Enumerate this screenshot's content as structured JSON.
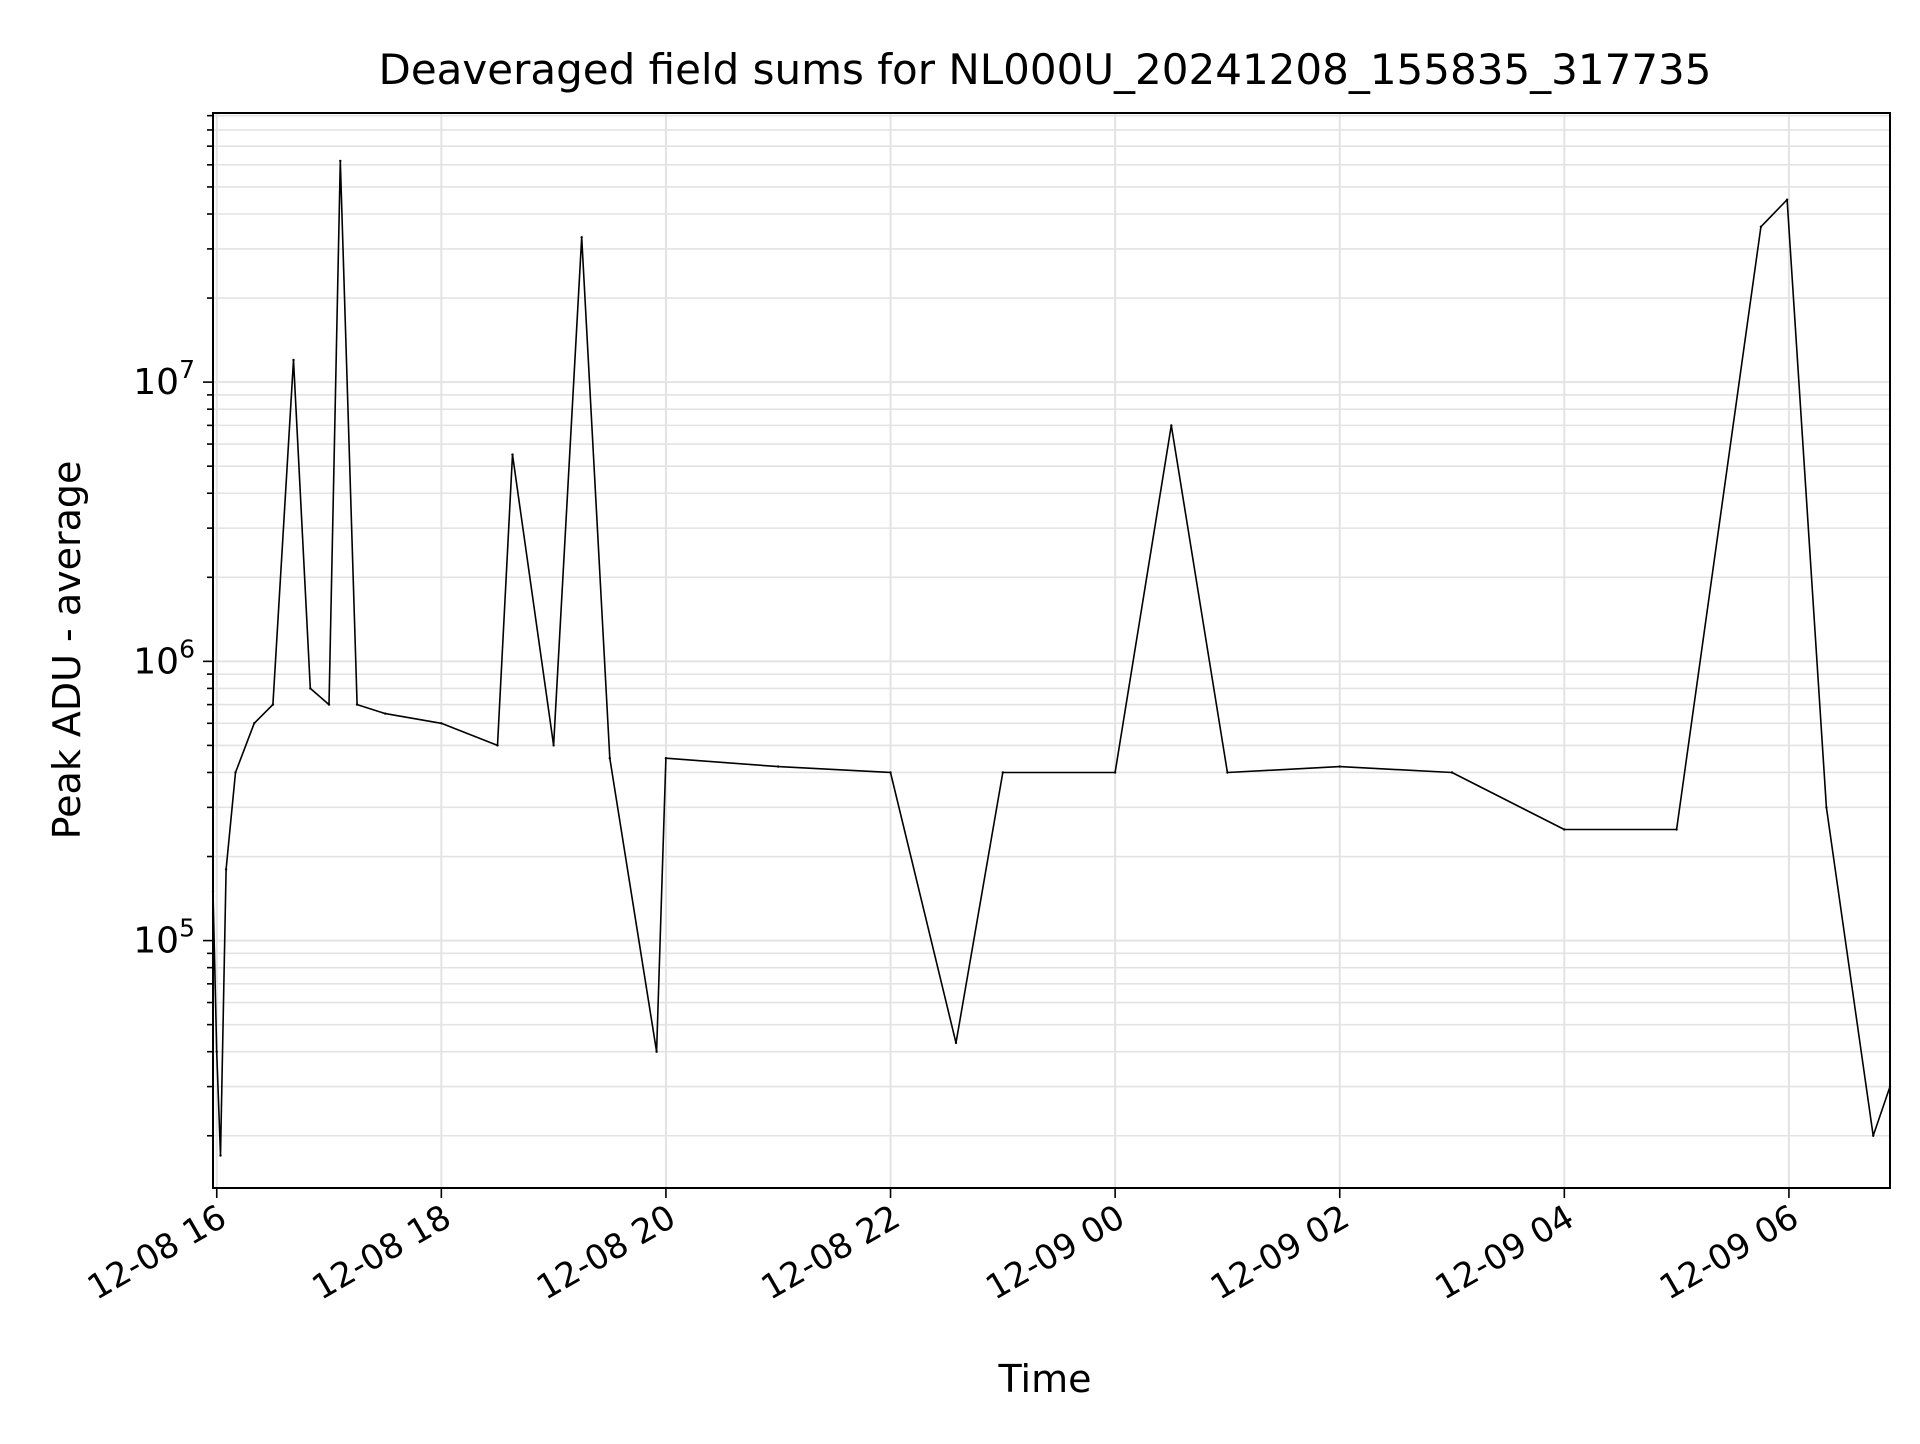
{
  "chart_data": {
    "type": "line",
    "title": "Deaveraged field sums for NL000U_20241208_155835_317735",
    "xlabel": "Time",
    "ylabel": "Peak ADU - average",
    "xlim": [
      "2024-12-08 15:58",
      "2024-12-09 06:54"
    ],
    "ylim": [
      13000,
      92000000
    ],
    "yscale": "log",
    "grid": true,
    "y_tick_values": [
      100000,
      1000000,
      10000000
    ],
    "y_tick_labels": [
      {
        "base": "10",
        "exp": "5"
      },
      {
        "base": "10",
        "exp": "6"
      },
      {
        "base": "10",
        "exp": "7"
      }
    ],
    "x_tick_values": [
      "2024-12-08 16:00",
      "2024-12-08 18:00",
      "2024-12-08 20:00",
      "2024-12-08 22:00",
      "2024-12-09 00:00",
      "2024-12-09 02:00",
      "2024-12-09 04:00",
      "2024-12-09 06:00"
    ],
    "x_tick_labels": [
      "12-08 16",
      "12-08 18",
      "12-08 20",
      "12-08 22",
      "12-09 00",
      "12-09 02",
      "12-09 04",
      "12-09 06"
    ],
    "line_color": "#000000",
    "grid_color": "#e3e3e3",
    "series": [
      {
        "values": [
          {
            "x": "2024-12-08 15:58",
            "y": 150000
          },
          {
            "x": "2024-12-08 16:00",
            "y": 40000
          },
          {
            "x": "2024-12-08 16:02",
            "y": 17000
          },
          {
            "x": "2024-12-08 16:05",
            "y": 180000
          },
          {
            "x": "2024-12-08 16:10",
            "y": 400000
          },
          {
            "x": "2024-12-08 16:20",
            "y": 600000
          },
          {
            "x": "2024-12-08 16:30",
            "y": 700000
          },
          {
            "x": "2024-12-08 16:41",
            "y": 12000000
          },
          {
            "x": "2024-12-08 16:50",
            "y": 800000
          },
          {
            "x": "2024-12-08 17:00",
            "y": 700000
          },
          {
            "x": "2024-12-08 17:06",
            "y": 62000000
          },
          {
            "x": "2024-12-08 17:15",
            "y": 700000
          },
          {
            "x": "2024-12-08 17:30",
            "y": 650000
          },
          {
            "x": "2024-12-08 18:00",
            "y": 600000
          },
          {
            "x": "2024-12-08 18:30",
            "y": 500000
          },
          {
            "x": "2024-12-08 18:38",
            "y": 5500000
          },
          {
            "x": "2024-12-08 19:00",
            "y": 500000
          },
          {
            "x": "2024-12-08 19:15",
            "y": 33000000
          },
          {
            "x": "2024-12-08 19:30",
            "y": 450000
          },
          {
            "x": "2024-12-08 19:55",
            "y": 40000
          },
          {
            "x": "2024-12-08 20:00",
            "y": 450000
          },
          {
            "x": "2024-12-08 21:00",
            "y": 420000
          },
          {
            "x": "2024-12-08 22:00",
            "y": 400000
          },
          {
            "x": "2024-12-08 22:35",
            "y": 43000
          },
          {
            "x": "2024-12-08 23:00",
            "y": 400000
          },
          {
            "x": "2024-12-09 00:00",
            "y": 400000
          },
          {
            "x": "2024-12-09 00:30",
            "y": 7000000
          },
          {
            "x": "2024-12-09 01:00",
            "y": 400000
          },
          {
            "x": "2024-12-09 02:00",
            "y": 420000
          },
          {
            "x": "2024-12-09 03:00",
            "y": 400000
          },
          {
            "x": "2024-12-09 04:00",
            "y": 250000
          },
          {
            "x": "2024-12-09 05:00",
            "y": 250000
          },
          {
            "x": "2024-12-09 05:45",
            "y": 36000000
          },
          {
            "x": "2024-12-09 05:59",
            "y": 45000000
          },
          {
            "x": "2024-12-09 06:20",
            "y": 300000
          },
          {
            "x": "2024-12-09 06:45",
            "y": 20000
          },
          {
            "x": "2024-12-09 06:54",
            "y": 30000
          }
        ]
      }
    ]
  }
}
